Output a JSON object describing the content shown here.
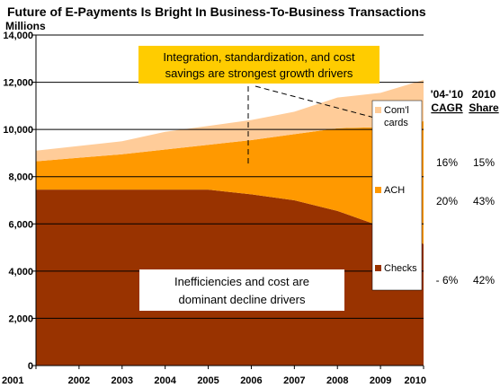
{
  "colors": {
    "checks": "#993300",
    "ach": "#ff9900",
    "commercial_cards": "#ffcc99",
    "callout_top": "#ffcc00",
    "callout_bottom": "#ffffff"
  },
  "chart_data": {
    "type": "area",
    "stacked": true,
    "title": "Future of E-Payments Is Bright In Business-To-Business Transactions",
    "ylabel": "Millions",
    "xlabel": "",
    "ylim": [
      0,
      14000
    ],
    "yticks": [
      "0",
      "2,000",
      "4,000",
      "6,000",
      "8,000",
      "10,000",
      "12,000",
      "14,000"
    ],
    "ytick_values": [
      0,
      2000,
      4000,
      6000,
      8000,
      10000,
      12000,
      14000
    ],
    "categories": [
      "2001",
      "2002",
      "2003",
      "2004",
      "2005",
      "2006",
      "2007",
      "2008",
      "2009",
      "2010"
    ],
    "grid": "horizontal",
    "series": [
      {
        "name": "Checks",
        "color_key": "checks",
        "values": [
          7450,
          7450,
          7450,
          7450,
          7450,
          7250,
          7000,
          6550,
          5900,
          5150
        ]
      },
      {
        "name": "ACH",
        "color_key": "ach",
        "values": [
          1200,
          1350,
          1500,
          1700,
          1900,
          2300,
          2800,
          3500,
          4200,
          5200
        ]
      },
      {
        "name": "Com'l cards",
        "color_key": "commercial_cards",
        "values": [
          450,
          500,
          550,
          750,
          800,
          850,
          950,
          1300,
          1450,
          1750
        ]
      }
    ],
    "legend": {
      "placement": "right",
      "items": [
        {
          "label_lines": [
            "Com'l",
            "cards"
          ],
          "color_key": "commercial_cards"
        },
        {
          "label_lines": [
            "ACH"
          ],
          "color_key": "ach"
        },
        {
          "label_lines": [
            "Checks"
          ],
          "color_key": "checks"
        }
      ]
    },
    "side_table": {
      "headers": {
        "cagr": [
          "'04-'10",
          "CAGR"
        ],
        "share": [
          "2010",
          "Share"
        ]
      },
      "rows": [
        {
          "series": "Com'l cards",
          "cagr": "16%",
          "share": "15%"
        },
        {
          "series": "ACH",
          "cagr": "20%",
          "share": "43%"
        },
        {
          "series": "Checks",
          "cagr": "- 6%",
          "share": "42%"
        }
      ]
    },
    "annotations": {
      "top_callout": [
        "Integration, standardization, and cost",
        "savings are strongest growth drivers"
      ],
      "bottom_callout": [
        "Inefficiencies and cost are",
        "dominant decline drivers"
      ]
    }
  }
}
